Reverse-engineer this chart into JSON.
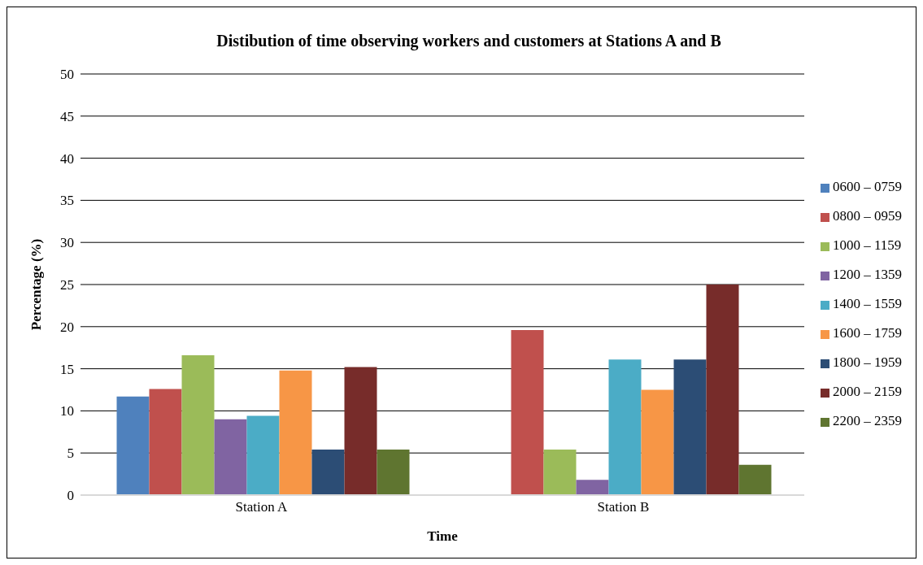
{
  "chart_data": {
    "type": "bar",
    "title": "Distibution of time observing workers and customers at Stations A and B",
    "xlabel": "Time",
    "ylabel": "Percentage (%)",
    "categories": [
      "Station A",
      "Station B"
    ],
    "series": [
      {
        "name": "0600 – 0759",
        "color": "#4f81bd",
        "values": [
          11.7,
          0
        ]
      },
      {
        "name": "0800 – 0959",
        "color": "#c0504d",
        "values": [
          12.6,
          19.6
        ]
      },
      {
        "name": "1000 – 1159",
        "color": "#9bbb59",
        "values": [
          16.6,
          5.4
        ]
      },
      {
        "name": "1200 – 1359",
        "color": "#8064a2",
        "values": [
          9.0,
          1.8
        ]
      },
      {
        "name": "1400 – 1559",
        "color": "#4bacc6",
        "values": [
          9.4,
          16.1
        ]
      },
      {
        "name": "1600 – 1759",
        "color": "#f79646",
        "values": [
          14.8,
          12.5
        ]
      },
      {
        "name": "1800 – 1959",
        "color": "#2c4d75",
        "values": [
          5.4,
          16.1
        ]
      },
      {
        "name": "2000 – 2159",
        "color": "#772c2a",
        "values": [
          15.2,
          25.0
        ]
      },
      {
        "name": "2200 – 2359",
        "color": "#5f7530",
        "values": [
          5.4,
          3.6
        ]
      }
    ],
    "ylim": [
      0,
      50
    ],
    "yticks": [
      0,
      5,
      10,
      15,
      20,
      25,
      30,
      35,
      40,
      45,
      50
    ],
    "grid": "y",
    "legend": "right"
  }
}
